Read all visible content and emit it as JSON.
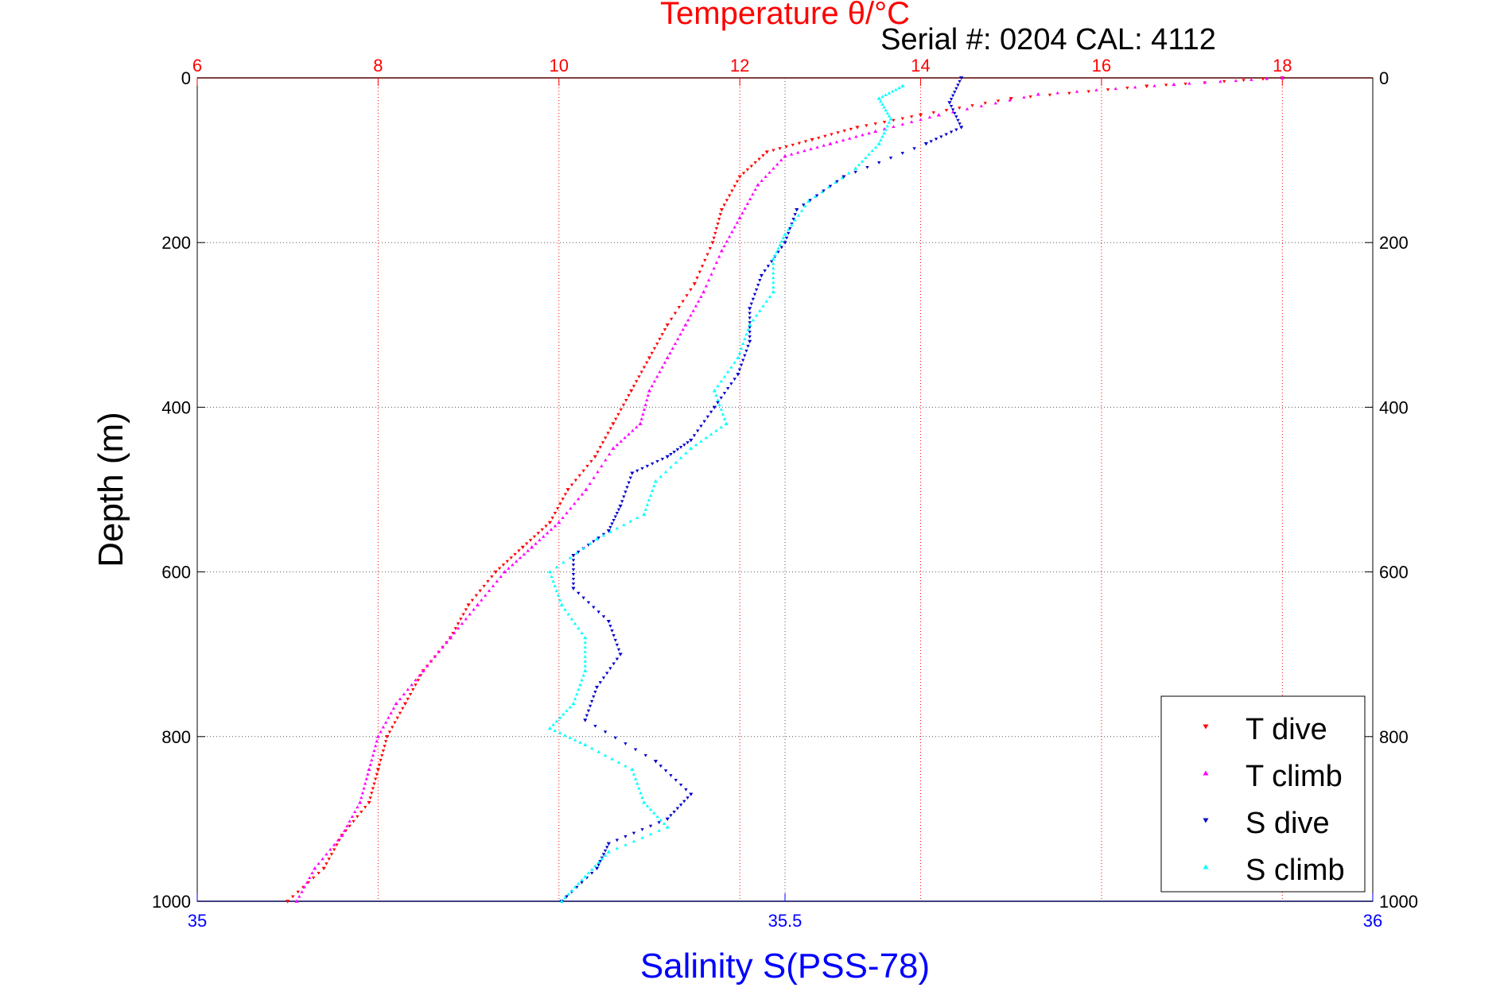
{
  "chart_data": {
    "type": "scatter",
    "title": "Temperature θ/°C",
    "subtitle": "Serial #: 0204  CAL: 4112",
    "ylabel": "Depth (m)",
    "xlabel_bottom": "Salinity S(PSS-78)",
    "ylim": [
      0,
      1000
    ],
    "y_ticks": [
      "0",
      "200",
      "400",
      "600",
      "800",
      "1000"
    ],
    "y_tick_values": [
      0,
      200,
      400,
      600,
      800,
      1000
    ],
    "temperature_axis": {
      "range": [
        6,
        19
      ],
      "ticks": [
        "6",
        "8",
        "10",
        "12",
        "14",
        "16",
        "18"
      ],
      "tick_values": [
        6,
        8,
        10,
        12,
        14,
        16,
        18
      ]
    },
    "salinity_axis": {
      "range": [
        35,
        36
      ],
      "ticks": [
        "35",
        "35.5",
        "36"
      ],
      "tick_values": [
        35,
        35.5,
        36
      ]
    },
    "grid": true,
    "legend_placement": "bottom-right",
    "colors": {
      "temperature_axis": "#ff0000",
      "salinity_axis": "#0000ff",
      "t_dive": "#ff0000",
      "t_climb": "#ff00ff",
      "s_dive": "#0000cc",
      "s_climb": "#00ffff"
    },
    "series": [
      {
        "name": "T dive",
        "axis": "temperature",
        "marker": "triangle-down",
        "points": [
          [
            18.0,
            0
          ],
          [
            16.5,
            10
          ],
          [
            15.0,
            25
          ],
          [
            14.0,
            45
          ],
          [
            13.3,
            60
          ],
          [
            12.8,
            75
          ],
          [
            12.3,
            90
          ],
          [
            12.0,
            120
          ],
          [
            11.8,
            160
          ],
          [
            11.7,
            200
          ],
          [
            11.5,
            250
          ],
          [
            11.2,
            300
          ],
          [
            11.0,
            340
          ],
          [
            10.8,
            380
          ],
          [
            10.6,
            420
          ],
          [
            10.4,
            460
          ],
          [
            10.1,
            500
          ],
          [
            9.9,
            540
          ],
          [
            9.6,
            570
          ],
          [
            9.3,
            600
          ],
          [
            9.0,
            640
          ],
          [
            8.8,
            680
          ],
          [
            8.5,
            720
          ],
          [
            8.3,
            760
          ],
          [
            8.1,
            800
          ],
          [
            8.0,
            840
          ],
          [
            7.9,
            880
          ],
          [
            7.6,
            920
          ],
          [
            7.4,
            960
          ],
          [
            7.0,
            1000
          ]
        ]
      },
      {
        "name": "T climb",
        "axis": "temperature",
        "marker": "triangle-up",
        "points": [
          [
            18.0,
            0
          ],
          [
            16.8,
            8
          ],
          [
            15.3,
            20
          ],
          [
            14.2,
            45
          ],
          [
            13.5,
            65
          ],
          [
            13.0,
            80
          ],
          [
            12.5,
            95
          ],
          [
            12.2,
            130
          ],
          [
            12.0,
            170
          ],
          [
            11.8,
            210
          ],
          [
            11.6,
            260
          ],
          [
            11.4,
            300
          ],
          [
            11.2,
            340
          ],
          [
            11.0,
            380
          ],
          [
            10.9,
            420
          ],
          [
            10.6,
            450
          ],
          [
            10.3,
            500
          ],
          [
            10.0,
            540
          ],
          [
            9.7,
            570
          ],
          [
            9.4,
            600
          ],
          [
            9.1,
            640
          ],
          [
            8.8,
            680
          ],
          [
            8.5,
            720
          ],
          [
            8.2,
            760
          ],
          [
            8.0,
            800
          ],
          [
            7.9,
            840
          ],
          [
            7.8,
            880
          ],
          [
            7.6,
            920
          ],
          [
            7.3,
            960
          ],
          [
            7.1,
            1000
          ]
        ]
      },
      {
        "name": "S dive",
        "axis": "salinity",
        "marker": "triangle-down",
        "points": [
          [
            35.65,
            0
          ],
          [
            35.64,
            30
          ],
          [
            35.65,
            60
          ],
          [
            35.62,
            80
          ],
          [
            35.55,
            120
          ],
          [
            35.51,
            160
          ],
          [
            35.5,
            200
          ],
          [
            35.48,
            240
          ],
          [
            35.47,
            280
          ],
          [
            35.47,
            320
          ],
          [
            35.46,
            360
          ],
          [
            35.44,
            400
          ],
          [
            35.42,
            440
          ],
          [
            35.4,
            460
          ],
          [
            35.37,
            480
          ],
          [
            35.36,
            520
          ],
          [
            35.35,
            550
          ],
          [
            35.32,
            580
          ],
          [
            35.32,
            620
          ],
          [
            35.35,
            660
          ],
          [
            35.36,
            700
          ],
          [
            35.34,
            740
          ],
          [
            35.33,
            780
          ],
          [
            35.39,
            830
          ],
          [
            35.42,
            870
          ],
          [
            35.4,
            900
          ],
          [
            35.35,
            930
          ],
          [
            35.34,
            960
          ],
          [
            35.31,
            1000
          ]
        ]
      },
      {
        "name": "S climb",
        "axis": "salinity",
        "marker": "triangle-up",
        "points": [
          [
            35.6,
            10
          ],
          [
            35.58,
            25
          ],
          [
            35.59,
            50
          ],
          [
            35.58,
            80
          ],
          [
            35.56,
            110
          ],
          [
            35.52,
            150
          ],
          [
            35.5,
            190
          ],
          [
            35.49,
            220
          ],
          [
            35.49,
            260
          ],
          [
            35.47,
            300
          ],
          [
            35.46,
            340
          ],
          [
            35.44,
            380
          ],
          [
            35.45,
            420
          ],
          [
            35.42,
            450
          ],
          [
            35.39,
            490
          ],
          [
            35.38,
            530
          ],
          [
            35.34,
            560
          ],
          [
            35.3,
            600
          ],
          [
            35.31,
            640
          ],
          [
            35.33,
            680
          ],
          [
            35.33,
            720
          ],
          [
            35.32,
            760
          ],
          [
            35.3,
            790
          ],
          [
            35.33,
            810
          ],
          [
            35.37,
            840
          ],
          [
            35.38,
            880
          ],
          [
            35.4,
            910
          ],
          [
            35.35,
            940
          ],
          [
            35.33,
            970
          ],
          [
            35.31,
            1000
          ]
        ]
      }
    ]
  }
}
